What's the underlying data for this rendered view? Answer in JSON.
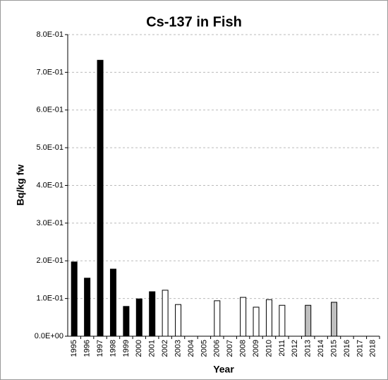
{
  "chart_data": {
    "type": "bar",
    "title": "Cs-137 in Fish",
    "x_label": "Year",
    "y_label": "Bq/kg fw",
    "categories": [
      "1995",
      "1996",
      "1997",
      "1998",
      "1999",
      "2000",
      "2001",
      "2002",
      "2003",
      "2004",
      "2005",
      "2006",
      "2007",
      "2008",
      "2009",
      "2010",
      "2011",
      "2012",
      "2013",
      "2014",
      "2015",
      "2016",
      "2017",
      "2018"
    ],
    "values": [
      0.197,
      0.154,
      0.732,
      0.178,
      0.079,
      0.099,
      0.118,
      0.122,
      0.084,
      null,
      null,
      0.094,
      null,
      0.103,
      0.077,
      0.097,
      0.082,
      null,
      0.082,
      null,
      0.09,
      null,
      null,
      null
    ],
    "colors": [
      "#000000",
      "#000000",
      "#000000",
      "#000000",
      "#000000",
      "#000000",
      "#000000",
      "#ffffff",
      "#ffffff",
      null,
      null,
      "#ffffff",
      null,
      "#ffffff",
      "#ffffff",
      "#ffffff",
      "#ffffff",
      null,
      "#bfbfbf",
      null,
      "#bfbfbf",
      null,
      null,
      null
    ],
    "ylim": [
      0,
      0.8
    ],
    "yticks": [
      {
        "value": 0,
        "label": "0.0E+00"
      },
      {
        "value": 0.1,
        "label": "1.0E-01"
      },
      {
        "value": 0.2,
        "label": "2.0E-01"
      },
      {
        "value": 0.3,
        "label": "3.0E-01"
      },
      {
        "value": 0.4,
        "label": "4.0E-01"
      },
      {
        "value": 0.5,
        "label": "5.0E-01"
      },
      {
        "value": 0.6,
        "label": "6.0E-01"
      },
      {
        "value": 0.7,
        "label": "7.0E-01"
      },
      {
        "value": 0.8,
        "label": "8.0E-01"
      }
    ],
    "grid": true
  }
}
